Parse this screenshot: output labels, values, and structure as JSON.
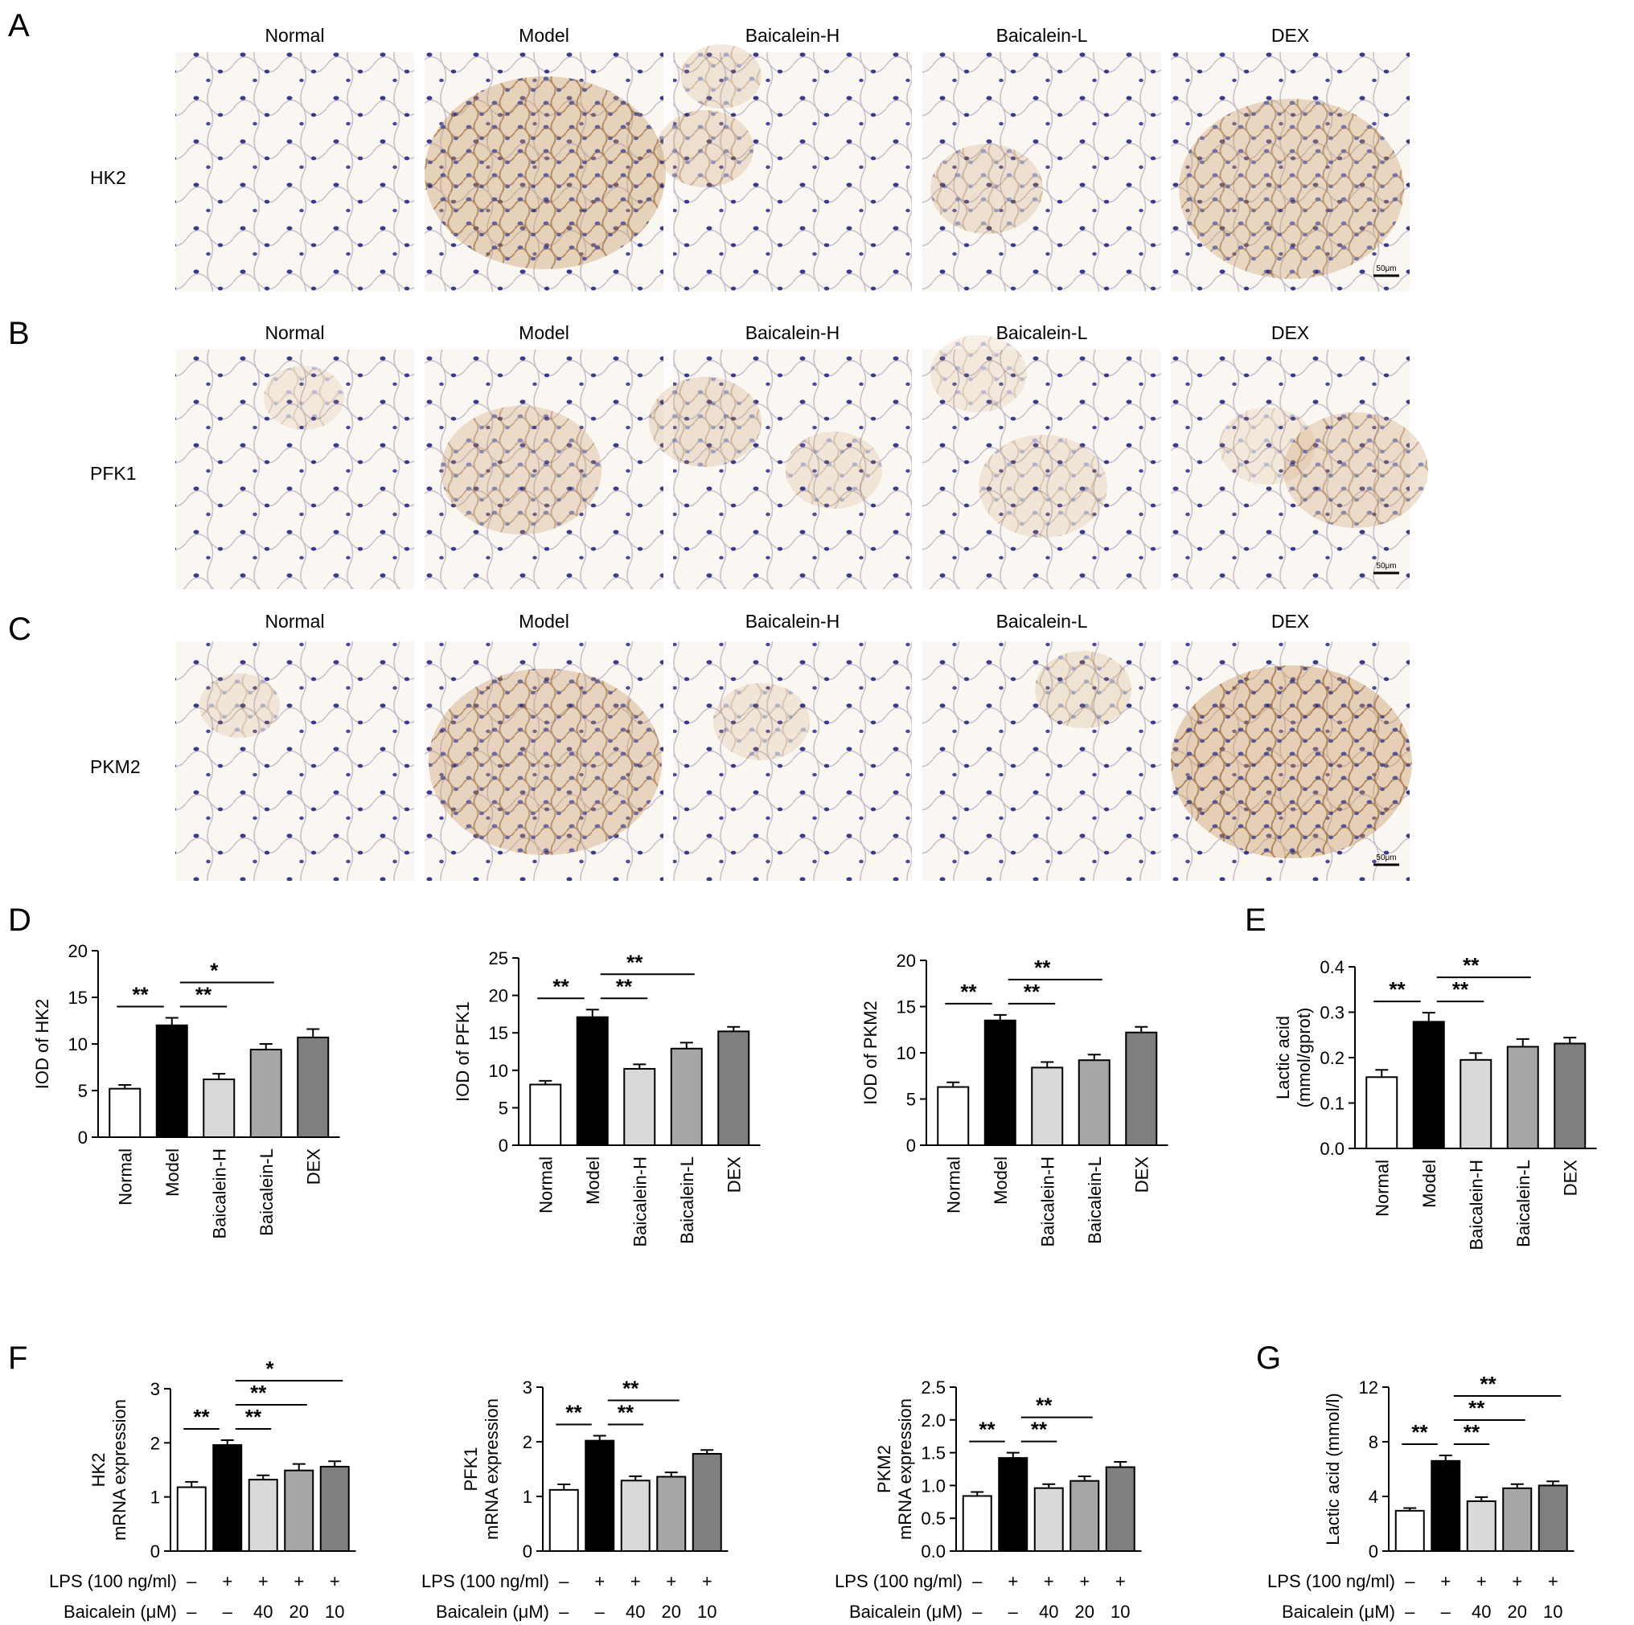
{
  "panel_letters": [
    "A",
    "B",
    "C",
    "D",
    "E",
    "F",
    "G"
  ],
  "ihc_column_labels": [
    "Normal",
    "Model",
    "Baicalein-H",
    "Baicalein-L",
    "DEX"
  ],
  "ihc_row_labels": [
    "HK2",
    "PFK1",
    "PKM2"
  ],
  "ihc_scale_bar": "50μm",
  "lps_row_label": "LPS (100 ng/ml)",
  "baicalein_row_label": "Baicalein (μM)",
  "lps_values": [
    "–",
    "+",
    "+",
    "+",
    "+"
  ],
  "baicalein_values": [
    "–",
    "–",
    "40",
    "20",
    "10"
  ],
  "colors": {
    "bar_fills": [
      "#ffffff",
      "#000000",
      "#d9d9d9",
      "#a6a6a6",
      "#7f7f7f"
    ],
    "axis": "#000000",
    "tissue_bg": "#faf7f3",
    "dab_stain": "#b5834f",
    "nuclei": "#3a3a8a"
  },
  "chart_data": [
    {
      "id": "D1",
      "type": "bar",
      "categories": [
        "Normal",
        "Model",
        "Baicalein-H",
        "Baicalein-L",
        "DEX"
      ],
      "values": [
        5.2,
        12.0,
        6.2,
        9.4,
        10.7
      ],
      "errors": [
        0.4,
        0.8,
        0.6,
        0.6,
        0.9
      ],
      "ylabel": "IOD of HK2",
      "ylim": [
        0,
        20
      ],
      "yticks": [
        "0",
        "5",
        "10",
        "15",
        "20"
      ],
      "significance": [
        {
          "from": 0,
          "to": 1,
          "label": "**"
        },
        {
          "from": 1,
          "to": 2,
          "label": "**"
        },
        {
          "from": 1,
          "to": 3,
          "label": "*"
        }
      ]
    },
    {
      "id": "D2",
      "type": "bar",
      "categories": [
        "Normal",
        "Model",
        "Baicalein-H",
        "Baicalein-L",
        "DEX"
      ],
      "values": [
        8.1,
        17.1,
        10.2,
        12.9,
        15.2
      ],
      "errors": [
        0.5,
        1.0,
        0.6,
        0.8,
        0.6
      ],
      "ylabel": "IOD of PFK1",
      "ylim": [
        0,
        25
      ],
      "yticks": [
        "0",
        "5",
        "10",
        "15",
        "20",
        "25"
      ],
      "significance": [
        {
          "from": 0,
          "to": 1,
          "label": "**"
        },
        {
          "from": 1,
          "to": 2,
          "label": "**"
        },
        {
          "from": 1,
          "to": 3,
          "label": "**"
        }
      ]
    },
    {
      "id": "D3",
      "type": "bar",
      "categories": [
        "Normal",
        "Model",
        "Baicalein-H",
        "Baicalein-L",
        "DEX"
      ],
      "values": [
        6.3,
        13.5,
        8.4,
        9.2,
        12.2
      ],
      "errors": [
        0.5,
        0.6,
        0.6,
        0.6,
        0.6
      ],
      "ylabel": "IOD of PKM2",
      "ylim": [
        0,
        20
      ],
      "yticks": [
        "0",
        "5",
        "10",
        "15",
        "20"
      ],
      "significance": [
        {
          "from": 0,
          "to": 1,
          "label": "**"
        },
        {
          "from": 1,
          "to": 2,
          "label": "**"
        },
        {
          "from": 1,
          "to": 3,
          "label": "**"
        }
      ]
    },
    {
      "id": "E",
      "type": "bar",
      "categories": [
        "Normal",
        "Model",
        "Baicalein-H",
        "Baicalein-L",
        "DEX"
      ],
      "values": [
        0.157,
        0.279,
        0.195,
        0.224,
        0.231
      ],
      "errors": [
        0.016,
        0.02,
        0.015,
        0.017,
        0.013
      ],
      "ylabel": "Lactic acid",
      "ylabel2": "(mmol/gprot)",
      "ylim": [
        0,
        0.4
      ],
      "yticks": [
        "0.0",
        "0.1",
        "0.2",
        "0.3",
        "0.4"
      ],
      "significance": [
        {
          "from": 0,
          "to": 1,
          "label": "**"
        },
        {
          "from": 1,
          "to": 2,
          "label": "**"
        },
        {
          "from": 1,
          "to": 3,
          "label": "**"
        }
      ]
    },
    {
      "id": "F1",
      "type": "bar",
      "values": [
        1.18,
        1.96,
        1.32,
        1.49,
        1.56
      ],
      "errors": [
        0.1,
        0.09,
        0.08,
        0.12,
        0.1
      ],
      "ylabel": "HK2",
      "ylabel2": "mRNA expression",
      "ylim": [
        0,
        3
      ],
      "yticks": [
        "0",
        "1",
        "2",
        "3"
      ],
      "significance": [
        {
          "from": 0,
          "to": 1,
          "label": "**"
        },
        {
          "from": 1,
          "to": 2,
          "label": "**"
        },
        {
          "from": 1,
          "to": 3,
          "label": "**"
        },
        {
          "from": 1,
          "to": 4,
          "label": "*"
        }
      ]
    },
    {
      "id": "F2",
      "type": "bar",
      "values": [
        1.12,
        2.02,
        1.29,
        1.36,
        1.78
      ],
      "errors": [
        0.1,
        0.09,
        0.08,
        0.08,
        0.07
      ],
      "ylabel": "PFK1",
      "ylabel2": "mRNA expression",
      "ylim": [
        0,
        3
      ],
      "yticks": [
        "0",
        "1",
        "2",
        "3"
      ],
      "significance": [
        {
          "from": 0,
          "to": 1,
          "label": "**"
        },
        {
          "from": 1,
          "to": 2,
          "label": "**"
        },
        {
          "from": 1,
          "to": 3,
          "label": "**"
        }
      ]
    },
    {
      "id": "F3",
      "type": "bar",
      "values": [
        0.84,
        1.42,
        0.96,
        1.07,
        1.28
      ],
      "errors": [
        0.06,
        0.08,
        0.06,
        0.07,
        0.08
      ],
      "ylabel": "PKM2",
      "ylabel2": "mRNA expression",
      "ylim": [
        0,
        2.5
      ],
      "yticks": [
        "0.0",
        "0.5",
        "1.0",
        "1.5",
        "2.0",
        "2.5"
      ],
      "significance": [
        {
          "from": 0,
          "to": 1,
          "label": "**"
        },
        {
          "from": 1,
          "to": 2,
          "label": "**"
        },
        {
          "from": 1,
          "to": 3,
          "label": "**"
        }
      ]
    },
    {
      "id": "G",
      "type": "bar",
      "values": [
        2.95,
        6.6,
        3.65,
        4.6,
        4.8
      ],
      "errors": [
        0.2,
        0.4,
        0.3,
        0.3,
        0.3
      ],
      "ylabel": "Lactic acid (mmol/l)",
      "ylim": [
        0,
        12
      ],
      "yticks": [
        "0",
        "4",
        "8",
        "12"
      ],
      "significance": [
        {
          "from": 0,
          "to": 1,
          "label": "**"
        },
        {
          "from": 1,
          "to": 2,
          "label": "**"
        },
        {
          "from": 1,
          "to": 3,
          "label": "**"
        },
        {
          "from": 1,
          "to": 4,
          "label": "**"
        }
      ]
    }
  ]
}
